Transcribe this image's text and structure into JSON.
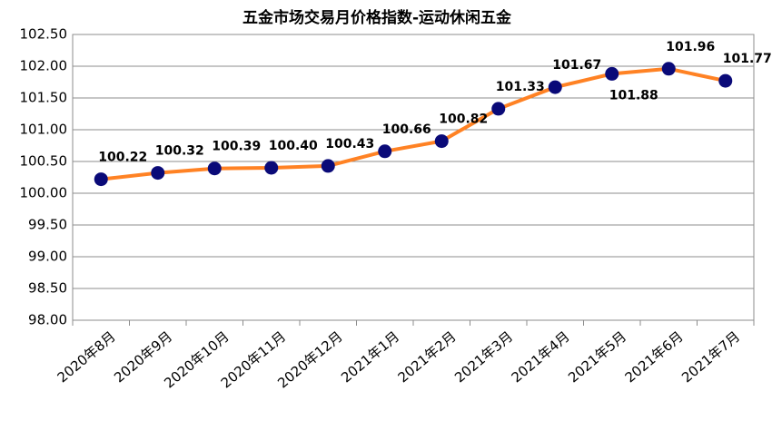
{
  "chart_data": {
    "type": "line",
    "title": "五金市场交易月价格指数-运动休闲五金",
    "categories": [
      "2020年8月",
      "2020年9月",
      "2020年10月",
      "2020年11月",
      "2020年12月",
      "2021年1月",
      "2021年2月",
      "2021年3月",
      "2021年4月",
      "2021年5月",
      "2021年6月",
      "2021年7月"
    ],
    "values": [
      100.22,
      100.32,
      100.39,
      100.4,
      100.43,
      100.66,
      100.82,
      101.33,
      101.67,
      101.88,
      101.96,
      101.77
    ],
    "value_labels": [
      "100.22",
      "100.32",
      "100.39",
      "100.40",
      "100.43",
      "100.66",
      "100.82",
      "101.33",
      "101.67",
      "101.88",
      "101.96",
      "101.77"
    ],
    "line_color": "#ff8224",
    "marker_color": "#0a0a78",
    "ylim": [
      98,
      102.5
    ],
    "yticks": [
      {
        "value": 98,
        "label": "98.00"
      },
      {
        "value": 98.5,
        "label": "98.50"
      },
      {
        "value": 99,
        "label": "99.00"
      },
      {
        "value": 99.5,
        "label": "99.50"
      },
      {
        "value": 100,
        "label": "100.00"
      },
      {
        "value": 100.5,
        "label": "100.50"
      },
      {
        "value": 101,
        "label": "101.00"
      },
      {
        "value": 101.5,
        "label": "101.50"
      },
      {
        "value": 102,
        "label": "102.00"
      },
      {
        "value": 102.5,
        "label": "102.50"
      }
    ],
    "grid": true
  }
}
